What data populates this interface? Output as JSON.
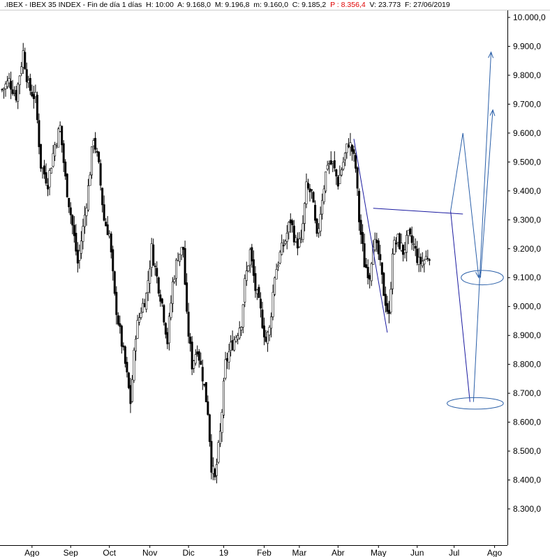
{
  "header": {
    "symbol": ".IBEX",
    "name": "IBEX 35 INDEX",
    "period": "Fin de día 1 días",
    "h": "H: 10:00",
    "a": "A: 9.168,0",
    "m": "M: 9.196,8",
    "mm": "m: 9.160,0",
    "c": "C: 9.185,2",
    "p": "P : 8.356,4",
    "v": "V: 23.773",
    "f": "F: 27/06/2019"
  },
  "colors": {
    "candle": "#000000",
    "drawing": "#1a1aa0",
    "projection": "#2a5fa8",
    "price_red": "#e00000"
  },
  "chart_data": {
    "type": "candlestick",
    "y_axis": {
      "ticks": [
        "10.000,0",
        "9.900,0",
        "9.800,0",
        "9.700,0",
        "9.600,0",
        "9.500,0",
        "9.400,0",
        "9.300,0",
        "9.200,0",
        "9.100,0",
        "9.000,0",
        "8.900,0",
        "8.800,0",
        "8.700,0",
        "8.600,0",
        "8.500,0",
        "8.400,0",
        "8.300,0"
      ],
      "tick_values": [
        10000,
        9900,
        9800,
        9700,
        9600,
        9500,
        9400,
        9300,
        9200,
        9100,
        9000,
        8900,
        8800,
        8700,
        8600,
        8500,
        8400,
        8300
      ],
      "range": [
        8260,
        10030
      ],
      "position": "right"
    },
    "x_axis": {
      "labels": [
        "Ago",
        "Sep",
        "Oct",
        "Nov",
        "Dic",
        "19",
        "Feb",
        "Mar",
        "Abr",
        "May",
        "Jun",
        "Jul",
        "Ago"
      ],
      "label_day_index": [
        17,
        39,
        61,
        84,
        106,
        126,
        149,
        169,
        191,
        214,
        236,
        257,
        280
      ]
    },
    "close_path": [
      [
        0,
        9750
      ],
      [
        4,
        9780
      ],
      [
        8,
        9730
      ],
      [
        12,
        9880
      ],
      [
        15,
        9760
      ],
      [
        19,
        9720
      ],
      [
        22,
        9490
      ],
      [
        26,
        9430
      ],
      [
        30,
        9560
      ],
      [
        33,
        9620
      ],
      [
        36,
        9440
      ],
      [
        40,
        9280
      ],
      [
        43,
        9150
      ],
      [
        46,
        9270
      ],
      [
        49,
        9410
      ],
      [
        52,
        9590
      ],
      [
        55,
        9480
      ],
      [
        58,
        9300
      ],
      [
        61,
        9250
      ],
      [
        64,
        9030
      ],
      [
        67,
        8910
      ],
      [
        70,
        8800
      ],
      [
        73,
        8670
      ],
      [
        76,
        8910
      ],
      [
        79,
        8990
      ],
      [
        82,
        9040
      ],
      [
        85,
        9200
      ],
      [
        88,
        9100
      ],
      [
        91,
        9010
      ],
      [
        94,
        8880
      ],
      [
        97,
        9080
      ],
      [
        100,
        9180
      ],
      [
        103,
        9200
      ],
      [
        105,
        8960
      ],
      [
        108,
        8800
      ],
      [
        111,
        8860
      ],
      [
        114,
        8760
      ],
      [
        117,
        8640
      ],
      [
        119,
        8450
      ],
      [
        121,
        8400
      ],
      [
        124,
        8560
      ],
      [
        127,
        8800
      ],
      [
        130,
        8860
      ],
      [
        133,
        8900
      ],
      [
        136,
        8950
      ],
      [
        138,
        9080
      ],
      [
        141,
        9190
      ],
      [
        144,
        9060
      ],
      [
        147,
        8980
      ],
      [
        150,
        8880
      ],
      [
        152,
        8920
      ],
      [
        155,
        9110
      ],
      [
        158,
        9180
      ],
      [
        161,
        9230
      ],
      [
        164,
        9300
      ],
      [
        167,
        9220
      ],
      [
        170,
        9220
      ],
      [
        173,
        9410
      ],
      [
        176,
        9390
      ],
      [
        179,
        9230
      ],
      [
        182,
        9380
      ],
      [
        185,
        9500
      ],
      [
        188,
        9490
      ],
      [
        191,
        9430
      ],
      [
        194,
        9500
      ],
      [
        197,
        9570
      ],
      [
        199,
        9540
      ],
      [
        201,
        9480
      ],
      [
        203,
        9300
      ],
      [
        206,
        9150
      ],
      [
        209,
        9110
      ],
      [
        211,
        9230
      ],
      [
        214,
        9180
      ],
      [
        217,
        9050
      ],
      [
        220,
        8960
      ],
      [
        222,
        9200
      ],
      [
        225,
        9230
      ],
      [
        228,
        9190
      ],
      [
        231,
        9240
      ],
      [
        234,
        9210
      ],
      [
        237,
        9150
      ],
      [
        240,
        9160
      ],
      [
        243,
        9185
      ]
    ],
    "annotations": {
      "trendline_1": {
        "from": [
          200,
          9580
        ],
        "to": [
          219,
          8910
        ]
      },
      "neckline": {
        "from": [
          211,
          9340
        ],
        "to": [
          262,
          9320
        ]
      },
      "projection_down": {
        "from": [
          255,
          9330
        ],
        "to": [
          266,
          8670
        ]
      },
      "projection_zigzag": {
        "points": [
          [
            255,
            9330
          ],
          [
            262,
            9600
          ],
          [
            271,
            9100
          ]
        ]
      },
      "projection_up_1": {
        "from": [
          268,
          8670
        ],
        "to": [
          278,
          9880
        ]
      },
      "projection_up_2": {
        "from": [
          272,
          9100
        ],
        "to": [
          279,
          9680
        ]
      },
      "ellipse_1": {
        "center": [
          269,
          8665
        ],
        "value_radius": 20,
        "day_radius": 8
      },
      "ellipse_2": {
        "center": [
          273,
          9100
        ],
        "value_radius": 25,
        "day_radius": 6
      }
    }
  }
}
